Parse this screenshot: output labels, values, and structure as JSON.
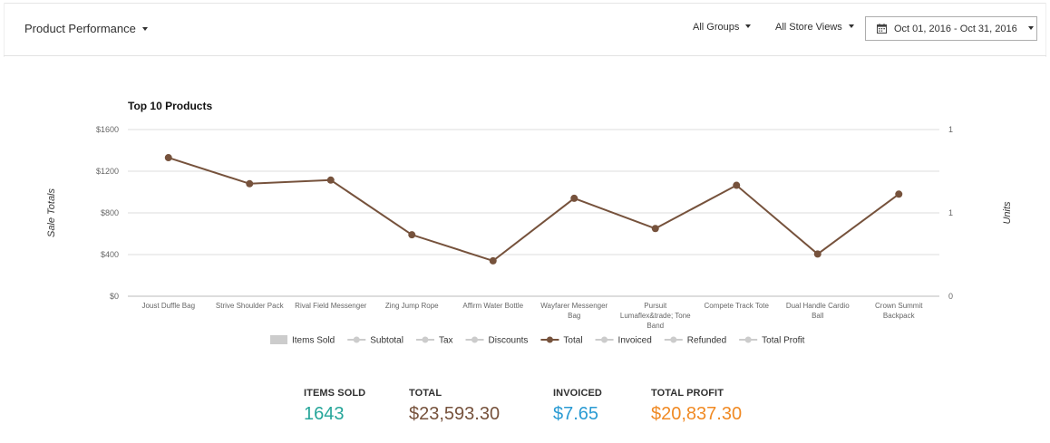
{
  "header": {
    "title": "Product Performance",
    "groups_filter": "All Groups",
    "store_views_filter": "All Store Views",
    "date_range": "Oct 01, 2016 - Oct 31, 2016"
  },
  "chart_data": {
    "type": "line",
    "title": "Top 10 Products",
    "ylabel": "Sale Totals",
    "y2label": "Units",
    "ylim": [
      0,
      1600
    ],
    "y_ticks": [
      "$0",
      "$400",
      "$800",
      "$1200",
      "$1600"
    ],
    "y_tick_values": [
      0,
      400,
      800,
      1200,
      1600
    ],
    "y2_ticks": [
      "0",
      "1",
      "1"
    ],
    "y2_tick_values": [
      0,
      0.8,
      1.6
    ],
    "categories": [
      [
        "Joust Duffle Bag"
      ],
      [
        "Strive Shoulder Pack"
      ],
      [
        "Rival Field Messenger"
      ],
      [
        "Zing Jump Rope"
      ],
      [
        "Affirm Water Bottle"
      ],
      [
        "Wayfarer Messenger",
        "Bag"
      ],
      [
        "Pursuit",
        "Lumaflex&trade; Tone",
        "Band"
      ],
      [
        "Compete Track Tote"
      ],
      [
        "Dual Handle Cardio",
        "Ball"
      ],
      [
        "Crown Summit",
        "Backpack"
      ]
    ],
    "series": [
      {
        "name": "Total",
        "values": [
          1330,
          1080,
          1115,
          590,
          340,
          940,
          650,
          1065,
          405,
          980
        ]
      }
    ],
    "legend": {
      "position": "bottom",
      "items": [
        {
          "name": "Items Sold",
          "kind": "box",
          "active": false
        },
        {
          "name": "Subtotal",
          "kind": "line",
          "active": false
        },
        {
          "name": "Tax",
          "kind": "line",
          "active": false
        },
        {
          "name": "Discounts",
          "kind": "line",
          "active": false
        },
        {
          "name": "Total",
          "kind": "line",
          "active": true
        },
        {
          "name": "Invoiced",
          "kind": "line",
          "active": false
        },
        {
          "name": "Refunded",
          "kind": "line",
          "active": false
        },
        {
          "name": "Total Profit",
          "kind": "line",
          "active": false
        }
      ]
    },
    "grid": true,
    "colors": {
      "total": "#76523c",
      "inactive": "#cccccc",
      "grid": "#dddddd",
      "tick": "#666666"
    }
  },
  "summary": {
    "items_sold_label": "Items Sold",
    "items_sold_value": "1643",
    "total_label": "Total",
    "total_value": "$23,593.30",
    "invoiced_label": "Invoiced",
    "invoiced_value": "$7.65",
    "total_profit_label": "Total Profit",
    "total_profit_value": "$20,837.30",
    "colors": {
      "items_sold": "#26a69a",
      "total": "#76523c",
      "invoiced": "#2a9bd3",
      "total_profit": "#f08a24"
    }
  }
}
